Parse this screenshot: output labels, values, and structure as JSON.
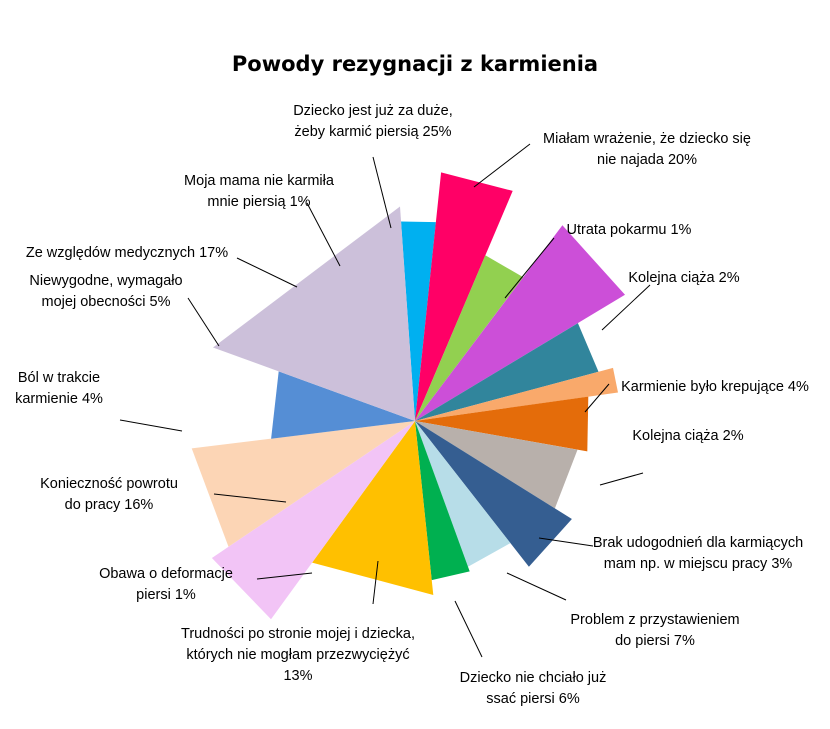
{
  "chart_data": {
    "type": "pie",
    "title": "Powody rezygnacji z karmienia",
    "slices": [
      {
        "label_lines": [
          "Dziecko jest już za duże,",
          "żeby karmić piersią 25%"
        ],
        "color": "#00b0f0"
      },
      {
        "label_lines": [
          "Miałam wrażenie, że dziecko się",
          "nie najada 20%"
        ],
        "color": "#ff0066"
      },
      {
        "label_lines": [
          "Utrata pokarmu 1%"
        ],
        "color": "#92d050"
      },
      {
        "label_lines": [
          "Kolejna ciąża 2%"
        ],
        "color": "#cc4fd8"
      },
      {
        "label_lines": [
          "Karmienie było krepujące 4%"
        ],
        "color": "#31859c"
      },
      {
        "label_lines": [
          "Kolejna ciąża 2%"
        ],
        "color": "#f9a96b"
      },
      {
        "label_lines": [
          "Brak udogodnień dla karmiących",
          "mam np. w miejscu pracy 3%"
        ],
        "color": "#e46c0a"
      },
      {
        "label_lines": [
          "Problem z przystawieniem",
          "do piersi 7%"
        ],
        "color": "#b8b0ab"
      },
      {
        "label_lines": [
          "Dziecko nie chciało już",
          "ssać piersi 6%"
        ],
        "color": "#355e91"
      },
      {
        "label_lines": [
          "Trudności po stronie mojej i dziecka,",
          "których nie mogłam przezwyciężyć",
          "13%"
        ],
        "color": "#b7dde8"
      },
      {
        "label_lines": [
          "Obawa o deformacje",
          "piersi 1%"
        ],
        "color": "#00b050"
      },
      {
        "label_lines": [
          "Konieczność powrotu",
          "do pracy 16%"
        ],
        "color": "#ffc000"
      },
      {
        "label_lines": [
          "Ból w trakcie",
          "karmienie 4%"
        ],
        "color": "#f2c4f6"
      },
      {
        "label_lines": [
          "Niewygodne, wymagało",
          "mojej obecności 5%"
        ],
        "color": "#fcd5b5"
      },
      {
        "label_lines": [
          "Ze względów medycznych 17%"
        ],
        "color": "#558ed5"
      },
      {
        "label_lines": [
          "Moja mama nie karmiła",
          "mnie piersią 1%"
        ],
        "color": "#ccc0da"
      }
    ]
  }
}
